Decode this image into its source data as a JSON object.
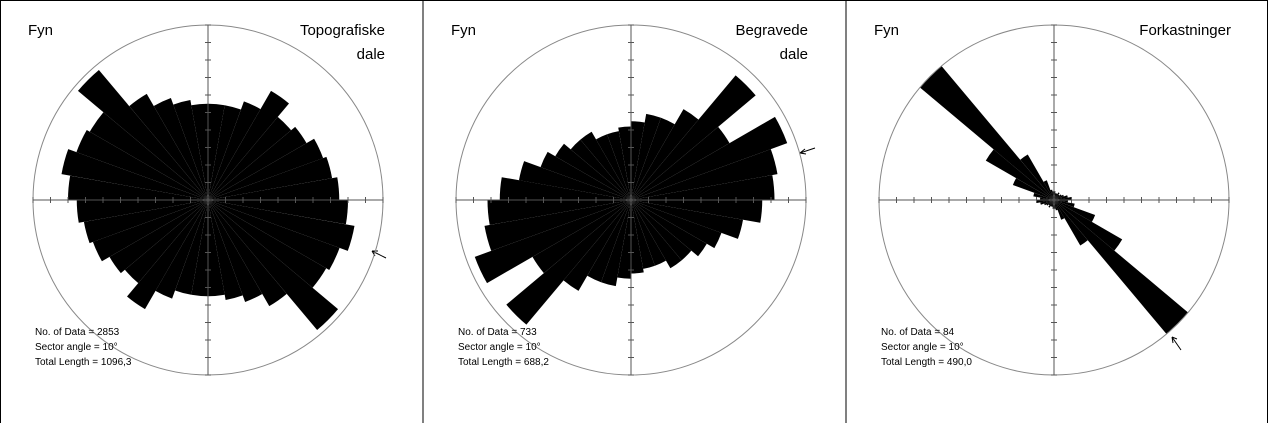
{
  "chart_data": [
    {
      "type": "rose",
      "region": "Fyn",
      "title": [
        "Topografiske",
        "dale"
      ],
      "annotations": [
        "No. of Data = 2853",
        "Sector angle = 10°",
        "Total Length = 1096,3"
      ],
      "sector_angle": 10,
      "rlim": [
        0,
        1
      ],
      "color": "#000000",
      "values": [
        0.55,
        0.55,
        0.6,
        0.72,
        0.62,
        0.65,
        0.7,
        0.72,
        0.75,
        0.8,
        0.85,
        0.8,
        0.78,
        0.97,
        0.7,
        0.62,
        0.58,
        0.55
      ]
    },
    {
      "type": "rose",
      "region": "Fyn",
      "title": [
        "Begravede",
        "dale"
      ],
      "annotations": [
        "No. of Data = 733",
        "Sector angle = 10°",
        "Total Length = 688,2"
      ],
      "sector_angle": 10,
      "rlim": [
        0,
        1
      ],
      "color": "#000000",
      "values": [
        0.45,
        0.5,
        0.5,
        0.6,
        0.93,
        0.65,
        0.95,
        0.85,
        0.82,
        0.75,
        0.65,
        0.55,
        0.5,
        0.45,
        0.45,
        0.4,
        0.4,
        0.42
      ]
    },
    {
      "type": "rose",
      "region": "Fyn",
      "title": [
        "Forkastninger"
      ],
      "annotations": [
        "No. of Data = 84",
        "Sector angle = 10°",
        "Total Length = 490,0"
      ],
      "sector_angle": 10,
      "rlim": [
        0,
        1
      ],
      "color": "#000000",
      "values": [
        0.05,
        0.04,
        0.04,
        0.05,
        0.04,
        0.05,
        0.06,
        0.08,
        0.1,
        0.08,
        0.12,
        0.25,
        0.45,
        1.0,
        0.3,
        0.12,
        0.06,
        0.05
      ]
    }
  ]
}
